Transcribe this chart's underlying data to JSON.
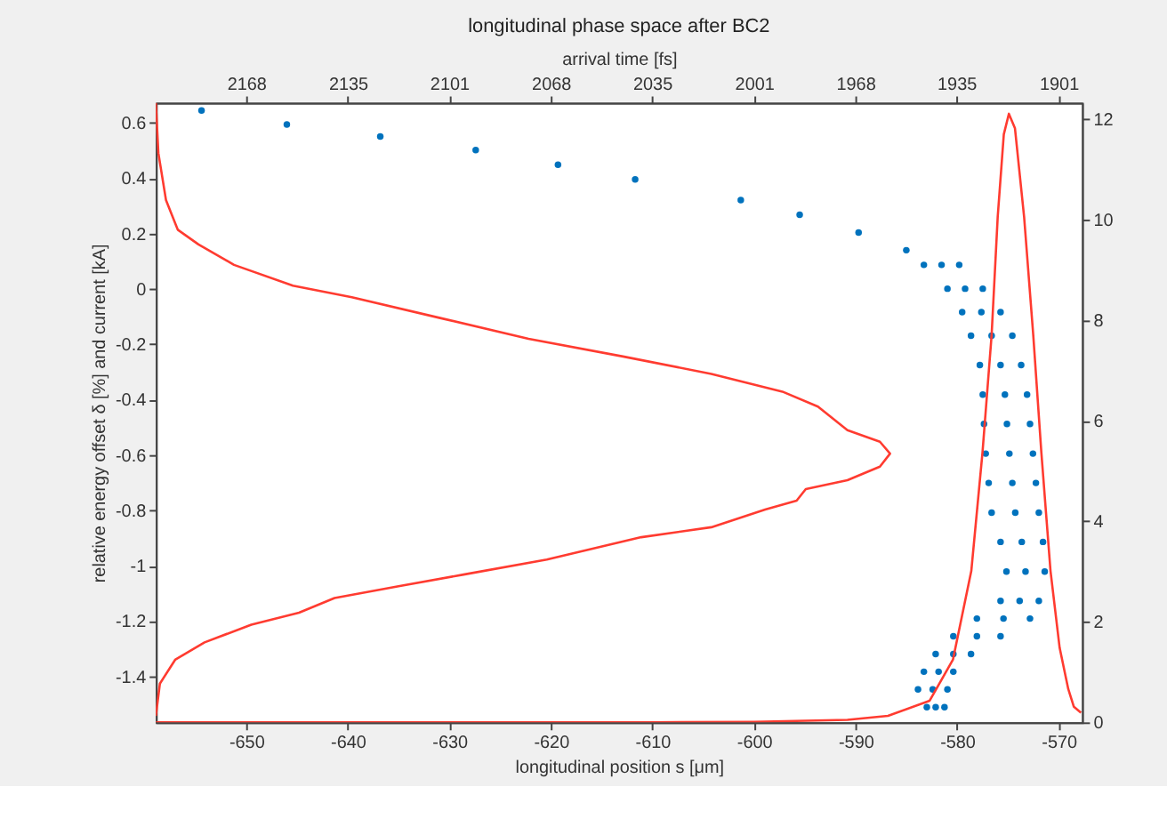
{
  "chart_data": {
    "type": "scatter",
    "title": "longitudinal phase space after BC2",
    "xlabel": "longitudinal position s [μm]",
    "ylabel": "relative energy offset  δ [%] and current [kA]",
    "x2label": "arrival time [fs]",
    "xlim": [
      -658.9,
      -567.7
    ],
    "xticks": [
      -650,
      -640,
      -630,
      -620,
      -610,
      -600,
      -590,
      -580,
      -570
    ],
    "x2lim": [
      2197.7,
      1893.3
    ],
    "x2ticks": [
      2168,
      {
        "value": 2134.6,
        "label": "2135"
      },
      {
        "value": 2101.3,
        "label": "2101"
      },
      {
        "value": 2067.9,
        "label": "2068"
      },
      {
        "value": 2034.6,
        "label": "2035"
      },
      {
        "value": 2001.1,
        "label": "2001"
      },
      {
        "value": 1967.8,
        "label": "1968"
      },
      {
        "value": 1934.6,
        "label": "1935"
      },
      1901
    ],
    "ylim": [
      -1.566,
      0.673
    ],
    "yticks": [
      -1.4,
      -1.2,
      -1,
      -0.8,
      -0.6,
      -0.4,
      -0.2,
      0,
      0.2,
      0.4,
      0.6
    ],
    "y2lim": [
      0,
      12.32
    ],
    "y2ticks": [
      0,
      2,
      4,
      6,
      8,
      10,
      12
    ],
    "series": [
      {
        "marker": "circle",
        "color": "#0072bd",
        "x": [
          -654.4,
          -646.0,
          -636.8,
          -627.4,
          -619.3,
          -611.7,
          -601.3,
          -595.5,
          -589.7,
          -585.0,
          -583.27,
          -581.53,
          -579.79,
          -580.95,
          -579.21,
          -577.47,
          -579.5,
          -577.61,
          -575.72,
          -578.63,
          -576.6,
          -574.56,
          -577.76,
          -575.72,
          -573.69,
          -577.47,
          -575.29,
          -573.11,
          -577.35,
          -575.09,
          -572.82,
          -577.18,
          -574.85,
          -572.53,
          -576.89,
          -574.56,
          -572.24,
          -576.6,
          -574.27,
          -571.95,
          -575.72,
          -573.63,
          -571.54,
          -575.14,
          -573.26,
          -571.37,
          -575.72,
          -573.84,
          -571.95,
          -578.05,
          -575.43,
          -572.82,
          -580.37,
          -578.05,
          -575.72,
          -582.11,
          -580.37,
          -578.63,
          -583.27,
          -581.82,
          -580.37,
          -583.85,
          -582.4,
          -580.95,
          -582.98,
          -582.11,
          -581.24
        ],
        "values": [
          0.645,
          0.594,
          0.551,
          0.502,
          0.449,
          0.396,
          0.321,
          0.268,
          0.204,
          0.14,
          0.087,
          0.087,
          0.087,
          0.001,
          0.001,
          0.001,
          -0.084,
          -0.084,
          -0.084,
          -0.169,
          -0.169,
          -0.169,
          -0.275,
          -0.275,
          -0.275,
          -0.382,
          -0.382,
          -0.382,
          -0.488,
          -0.488,
          -0.488,
          -0.595,
          -0.595,
          -0.595,
          -0.701,
          -0.701,
          -0.701,
          -0.808,
          -0.808,
          -0.808,
          -0.914,
          -0.914,
          -0.914,
          -1.021,
          -1.021,
          -1.021,
          -1.127,
          -1.127,
          -1.127,
          -1.191,
          -1.191,
          -1.191,
          -1.255,
          -1.255,
          -1.255,
          -1.319,
          -1.319,
          -1.319,
          -1.383,
          -1.383,
          -1.383,
          -1.447,
          -1.447,
          -1.447,
          -1.511,
          -1.511,
          -1.511
        ]
      },
      {
        "type": "line",
        "color": "#ff3b30",
        "x": [
          -658.9,
          -658.65,
          -657.9,
          -656.74,
          -654.7,
          -651.2,
          -645.4,
          -639.6,
          -630.9,
          -622.2,
          -612.9,
          -604.2,
          -597.2,
          -593.7,
          -590.8,
          -587.6,
          -586.6,
          -587.6,
          -590.8,
          -594.9,
          -595.8,
          -598.9,
          -604.2,
          -611.1,
          -620.4,
          -628.6,
          -635.0,
          -641.3,
          -644.8,
          -649.5,
          -654.1,
          -657.0,
          -658.5,
          -658.9
        ],
        "values": [
          0.672,
          0.491,
          0.321,
          0.214,
          0.161,
          0.087,
          0.012,
          -0.03,
          -0.105,
          -0.18,
          -0.244,
          -0.307,
          -0.371,
          -0.425,
          -0.51,
          -0.552,
          -0.595,
          -0.642,
          -0.691,
          -0.723,
          -0.765,
          -0.797,
          -0.861,
          -0.897,
          -0.978,
          -1.032,
          -1.074,
          -1.117,
          -1.17,
          -1.213,
          -1.277,
          -1.34,
          -1.426,
          -1.543
        ]
      },
      {
        "type": "line",
        "color": "#ff3b30",
        "axis": "y2",
        "x": [
          -658.9,
          -610.0,
          -600.0,
          -590.8,
          -586.8,
          -582.7,
          -580.4,
          -578.6,
          -577.5,
          -576.6,
          -576.0,
          -575.4,
          -574.9,
          -574.3,
          -573.4,
          -572.5,
          -571.7,
          -570.8,
          -569.9,
          -569.05,
          -568.5,
          -567.8
        ],
        "values": [
          0,
          0,
          0.01,
          0.05,
          0.13,
          0.43,
          1.25,
          3.01,
          5.36,
          7.7,
          10.05,
          11.69,
          12.1,
          11.81,
          10.05,
          7.7,
          5.36,
          3.01,
          1.48,
          0.66,
          0.31,
          0.19
        ]
      }
    ]
  }
}
